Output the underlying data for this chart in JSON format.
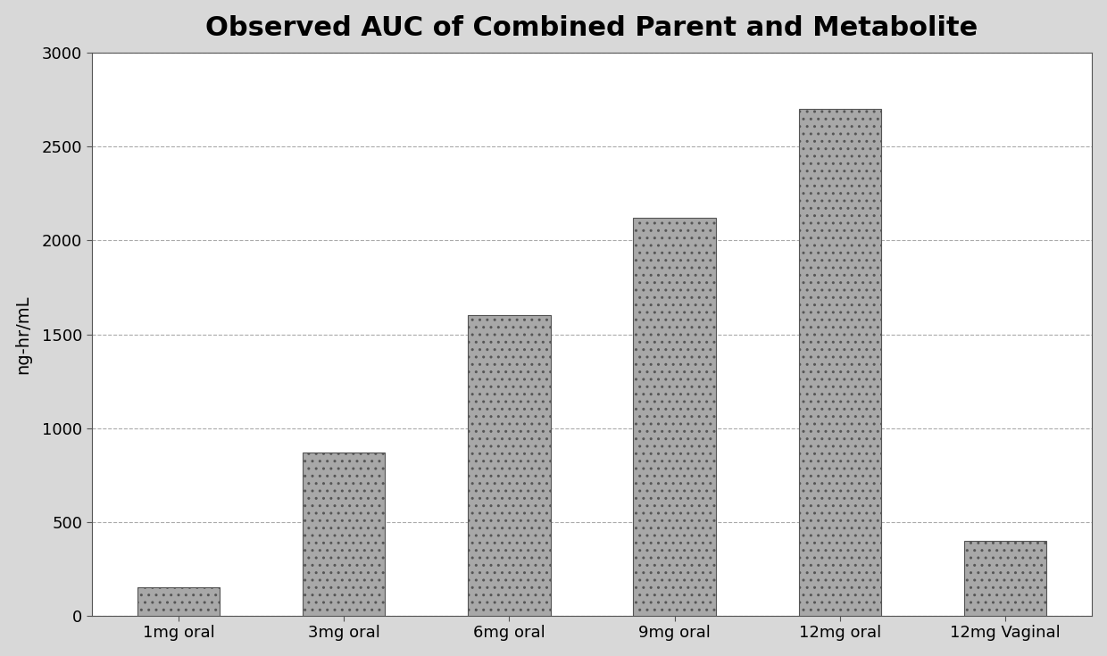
{
  "title": "Observed AUC of Combined Parent and Metabolite",
  "categories": [
    "1mg oral",
    "3mg oral",
    "6mg oral",
    "9mg oral",
    "12mg oral",
    "12mg Vaginal"
  ],
  "values": [
    150,
    870,
    1600,
    2120,
    2700,
    400
  ],
  "ylabel": "ng-hr/mL",
  "ylim": [
    0,
    3000
  ],
  "yticks": [
    0,
    500,
    1000,
    1500,
    2000,
    2500,
    3000
  ],
  "bar_color": "#a8a8a8",
  "bar_edge_color": "#555555",
  "axes_background": "#ffffff",
  "fig_background": "#d8d8d8",
  "title_fontsize": 22,
  "axis_label_fontsize": 14,
  "tick_fontsize": 13,
  "grid_color": "#aaaaaa",
  "grid_linestyle": "--",
  "grid_linewidth": 0.8,
  "bar_width": 0.5,
  "hatch": "..",
  "spine_color": "#555555"
}
